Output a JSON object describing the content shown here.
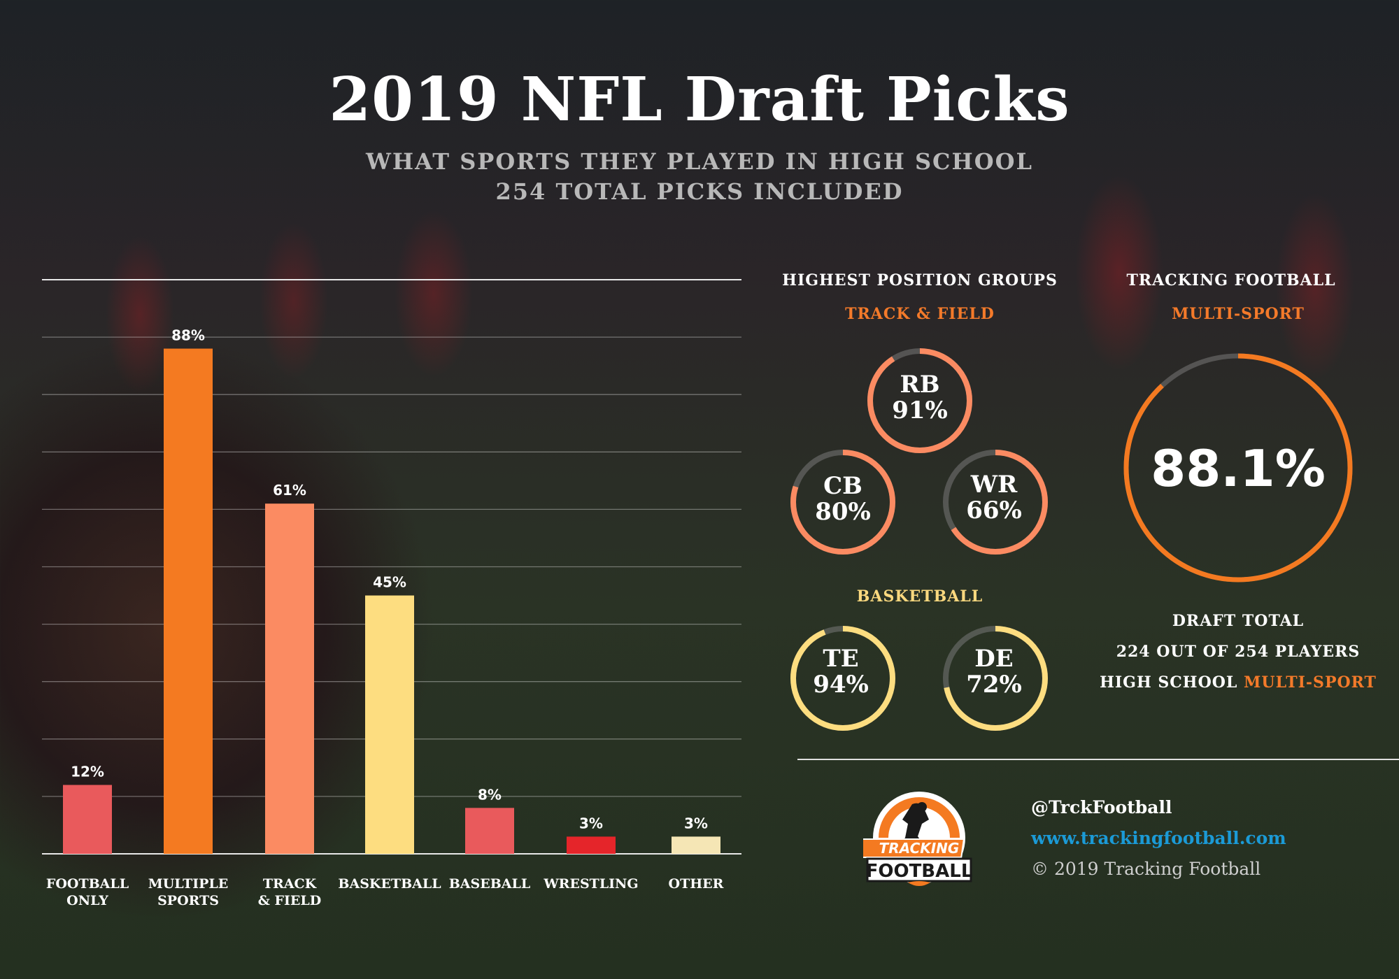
{
  "header": {
    "title": "2019 NFL Draft Picks",
    "subtitle_line1": "WHAT SPORTS THEY PLAYED IN HIGH SCHOOL",
    "subtitle_line2": "254 TOTAL PICKS INCLUDED"
  },
  "chart_data": {
    "type": "bar",
    "categories": [
      [
        "FOOTBALL",
        "ONLY"
      ],
      [
        "MULTIPLE",
        "SPORTS"
      ],
      [
        "TRACK",
        "& FIELD"
      ],
      [
        "BASKETBALL"
      ],
      [
        "BASEBALL"
      ],
      [
        "WRESTLING"
      ],
      [
        "OTHER"
      ]
    ],
    "values": [
      12,
      88,
      61,
      45,
      8,
      3,
      3
    ],
    "data_labels": [
      "12%",
      "88%",
      "61%",
      "45%",
      "8%",
      "3%",
      "3%"
    ],
    "colors": [
      "#e95a5c",
      "#f47a21",
      "#fb8b62",
      "#fddd80",
      "#e95a5c",
      "#e5252a",
      "#f5e6b5"
    ],
    "ylim": [
      0,
      100
    ],
    "grid": true
  },
  "positions": {
    "heading": "HIGHEST POSITION GROUPS",
    "track_label": "TRACK & FIELD",
    "basketball_label": "BASKETBALL",
    "track_color": "#fb8b62",
    "basketball_color": "#fddd80",
    "rings": [
      {
        "pos": "RB",
        "value": 91,
        "label": "91%",
        "group": "track"
      },
      {
        "pos": "CB",
        "value": 80,
        "label": "80%",
        "group": "track"
      },
      {
        "pos": "WR",
        "value": 66,
        "label": "66%",
        "group": "track"
      },
      {
        "pos": "TE",
        "value": 94,
        "label": "94%",
        "group": "basketball"
      },
      {
        "pos": "DE",
        "value": 72,
        "label": "72%",
        "group": "basketball"
      }
    ]
  },
  "summary": {
    "heading": "TRACKING FOOTBALL",
    "sub": "MULTI-SPORT",
    "value": 88.1,
    "value_label": "88.1%",
    "ring_color": "#f47a21",
    "total_title": "DRAFT TOTAL",
    "total_line": "224 OUT OF 254 PLAYERS",
    "total_prefix": "HIGH SCHOOL",
    "total_highlight": "MULTI-SPORT"
  },
  "footer": {
    "handle": "@TrckFootball",
    "url": "www.trackingfootball.com",
    "copyright": "© 2019 Tracking Football",
    "logo_line1": "TRACKING",
    "logo_line2": "FOOTBALL",
    "url_color": "#1b9ad6"
  }
}
